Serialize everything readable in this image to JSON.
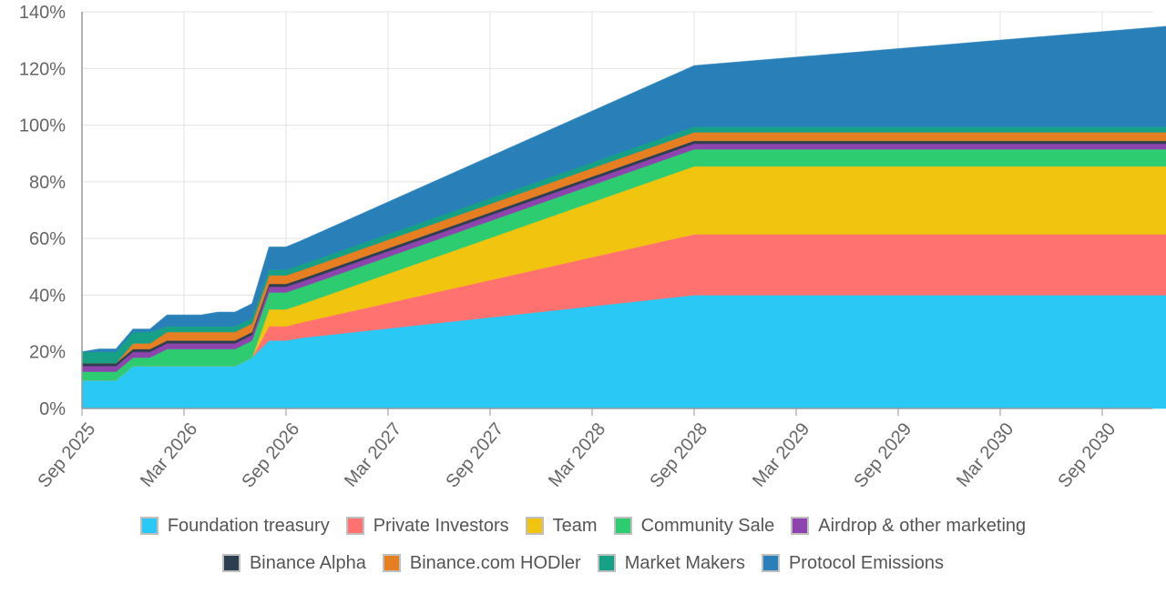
{
  "chart_data": {
    "type": "area",
    "stacked": true,
    "x": [
      "2025-09",
      "2025-10",
      "2025-11",
      "2025-12",
      "2026-01",
      "2026-02",
      "2026-03",
      "2026-04",
      "2026-05",
      "2026-06",
      "2026-07",
      "2026-08",
      "2026-09",
      "2026-10",
      "2028-09",
      "2031-01"
    ],
    "x_ticks": [
      "Sep 2025",
      "Mar 2026",
      "Sep 2026",
      "Mar 2027",
      "Sep 2027",
      "Mar 2028",
      "Sep 2028",
      "Mar 2029",
      "Sep 2029",
      "Mar 2030",
      "Sep 2030"
    ],
    "y_ticks": [
      "0%",
      "20%",
      "40%",
      "60%",
      "80%",
      "100%",
      "120%",
      "140%"
    ],
    "ylim": [
      0,
      140
    ],
    "grid": true,
    "legend_position": "bottom",
    "series": [
      {
        "name": "Foundation treasury",
        "color": "#29c8f5",
        "values": [
          10,
          10,
          10,
          15,
          15,
          15,
          15,
          15,
          15,
          15,
          18,
          24,
          24,
          25,
          40,
          40
        ]
      },
      {
        "name": "Private Investors",
        "color": "#ff7270",
        "values": [
          0,
          0,
          0,
          0,
          0,
          0,
          0,
          0,
          0,
          0,
          0,
          5,
          5,
          5.5,
          21.5,
          21.5
        ]
      },
      {
        "name": "Team",
        "color": "#f1c40f",
        "values": [
          0,
          0,
          0,
          0,
          0,
          0,
          0,
          0,
          0,
          0,
          0,
          6,
          6,
          6.5,
          24,
          24
        ]
      },
      {
        "name": "Community Sale",
        "color": "#2ecc71",
        "values": [
          3,
          3,
          3,
          3,
          3,
          6,
          6,
          6,
          6,
          6,
          6,
          6,
          6,
          6,
          6,
          6
        ]
      },
      {
        "name": "Airdrop & other marketing",
        "color": "#8e44ad",
        "values": [
          2,
          2,
          2,
          2,
          2,
          2,
          2,
          2,
          2,
          2,
          2,
          2,
          2,
          2,
          2,
          2
        ]
      },
      {
        "name": "Binance Alpha",
        "color": "#2c3e50",
        "values": [
          1,
          1,
          1,
          1,
          1,
          1,
          1,
          1,
          1,
          1,
          1,
          1,
          1,
          1,
          1,
          1
        ]
      },
      {
        "name": "Binance.com HODler",
        "color": "#e67e22",
        "values": [
          0,
          0,
          0,
          2,
          2,
          3,
          3,
          3,
          3,
          3,
          3,
          3,
          3,
          3,
          3,
          3
        ]
      },
      {
        "name": "Market Makers",
        "color": "#16a085",
        "values": [
          4,
          4,
          4,
          4,
          4,
          2,
          2,
          2,
          2,
          2,
          2,
          2,
          2,
          2,
          2,
          2
        ]
      },
      {
        "name": "Protocol Emissions",
        "color": "#2980b9",
        "values": [
          0,
          1,
          1,
          1,
          1,
          4,
          4,
          4,
          5,
          5,
          5,
          8,
          8,
          8.5,
          21.5,
          35.5
        ]
      }
    ]
  }
}
